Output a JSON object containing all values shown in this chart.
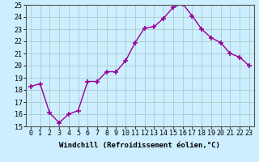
{
  "x": [
    0,
    1,
    2,
    3,
    4,
    5,
    6,
    7,
    8,
    9,
    10,
    11,
    12,
    13,
    14,
    15,
    16,
    17,
    18,
    19,
    20,
    21,
    22,
    23
  ],
  "y": [
    18.3,
    18.5,
    16.1,
    15.3,
    16.0,
    16.3,
    18.7,
    18.7,
    19.5,
    19.5,
    20.4,
    21.9,
    23.1,
    23.2,
    23.9,
    24.8,
    25.1,
    24.1,
    23.0,
    22.3,
    21.9,
    21.0,
    20.7,
    20.0
  ],
  "line_color": "#990099",
  "marker": "+",
  "markersize": 4,
  "markeredgewidth": 1.2,
  "linewidth": 1.0,
  "bg_color": "#cceeff",
  "grid_color": "#aacccc",
  "xlabel": "Windchill (Refroidissement éolien,°C)",
  "xlabel_fontsize": 6.5,
  "tick_fontsize": 6,
  "ylim": [
    15,
    25
  ],
  "xlim": [
    -0.5,
    23.5
  ],
  "yticks": [
    15,
    16,
    17,
    18,
    19,
    20,
    21,
    22,
    23,
    24,
    25
  ],
  "xticks": [
    0,
    1,
    2,
    3,
    4,
    5,
    6,
    7,
    8,
    9,
    10,
    11,
    12,
    13,
    14,
    15,
    16,
    17,
    18,
    19,
    20,
    21,
    22,
    23
  ]
}
